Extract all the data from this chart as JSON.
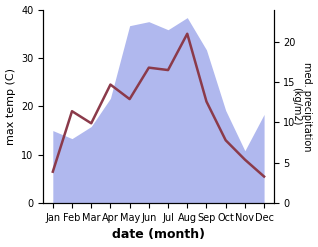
{
  "months": [
    "Jan",
    "Feb",
    "Mar",
    "Apr",
    "May",
    "Jun",
    "Jul",
    "Aug",
    "Sep",
    "Oct",
    "Nov",
    "Dec"
  ],
  "temp": [
    6.5,
    19.0,
    16.5,
    24.5,
    21.5,
    28.0,
    27.5,
    35.0,
    21.0,
    13.0,
    9.0,
    5.5
  ],
  "precip": [
    9,
    8,
    9.5,
    13,
    22,
    22.5,
    21.5,
    23,
    19,
    11.5,
    6.5,
    11
  ],
  "temp_color": "#8B3A4A",
  "precip_color": "#b0b8ee",
  "xlabel": "date (month)",
  "ylabel_left": "max temp (C)",
  "ylabel_right": "med. precipitation\n(kg/m2)",
  "ylim_left": [
    0,
    40
  ],
  "ylim_right": [
    0,
    24
  ],
  "yticks_left": [
    0,
    10,
    20,
    30,
    40
  ],
  "yticks_right": [
    0,
    5,
    10,
    15,
    20
  ],
  "bg_color": "#ffffff",
  "temp_linewidth": 1.8,
  "figsize": [
    3.18,
    2.47
  ],
  "dpi": 100
}
